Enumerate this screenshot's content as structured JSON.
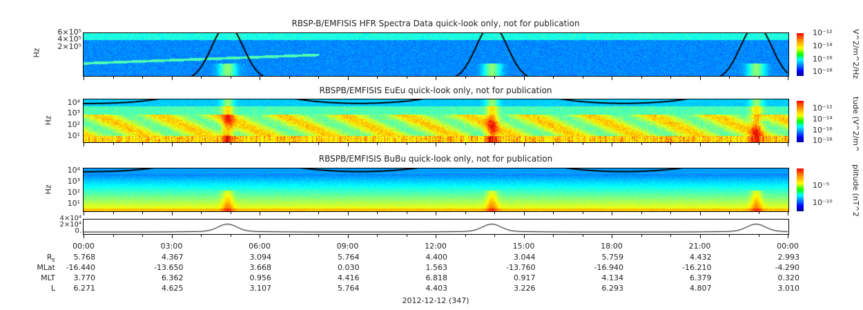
{
  "chart_data": [
    {
      "type": "heatmap",
      "title": "RBSP-B/EMFISIS  HFR Spectra Data quick-look only, not for publication",
      "ylabel": "Hz",
      "yticks": [
        "6×10⁵",
        "4×10⁵",
        "2×10⁵"
      ],
      "colorbar": {
        "label": "V^2/m^2/Hz",
        "ticks": [
          "10⁻¹²",
          "10⁻¹⁴",
          "10⁻¹⁶",
          "10⁻¹⁸"
        ]
      }
    },
    {
      "type": "heatmap",
      "title": "RBSPB/EMFISIS  EuEu quick-look only, not for publication",
      "ylabel": "Hz",
      "yticks": [
        "10⁴",
        "10³",
        "10²",
        "10¹"
      ],
      "colorbar": {
        "label": "tude (V^2/m^",
        "ticks": [
          "10⁻¹²",
          "10⁻¹⁴",
          "10⁻¹⁶",
          "10⁻¹⁸"
        ]
      }
    },
    {
      "type": "heatmap",
      "title": "RBSPB/EMFISIS  BuBu quick-look only, not for publication",
      "ylabel": "Hz",
      "yticks": [
        "10⁴",
        "10³",
        "10²",
        "10¹"
      ],
      "colorbar": {
        "label": "plitude (nT^2",
        "ticks": [
          "10⁻⁵",
          "10⁻¹⁰"
        ]
      }
    },
    {
      "type": "line",
      "yticks": [
        "4×10⁴",
        "2×10⁴",
        "0."
      ],
      "peaks_hours": [
        4.9,
        13.9,
        22.9
      ]
    }
  ],
  "xaxis": {
    "ticks": [
      "00:00",
      "03:00",
      "06:00",
      "09:00",
      "12:00",
      "15:00",
      "18:00",
      "21:00",
      "00:00"
    ],
    "label": "2012-12-12 (347)"
  },
  "ephemeris": {
    "rows": [
      {
        "label": "R",
        "sub": "E",
        "values": [
          "5.768",
          "4.367",
          "3.094",
          "5.764",
          "4.400",
          "3.044",
          "5.759",
          "4.432",
          "2.993"
        ]
      },
      {
        "label": "MLat",
        "values": [
          "-16.440",
          "-13.650",
          "3.668",
          "0.030",
          "1.563",
          "-13.760",
          "-16.940",
          "-16.210",
          "-4.290"
        ]
      },
      {
        "label": "MLT",
        "values": [
          "3.770",
          "6.362",
          "0.956",
          "4.416",
          "6.818",
          "0.917",
          "4.134",
          "6.379",
          "0.320"
        ]
      },
      {
        "label": "L",
        "values": [
          "6.271",
          "4.625",
          "3.107",
          "5.764",
          "4.403",
          "3.226",
          "6.293",
          "4.807",
          "3.010"
        ]
      }
    ]
  }
}
